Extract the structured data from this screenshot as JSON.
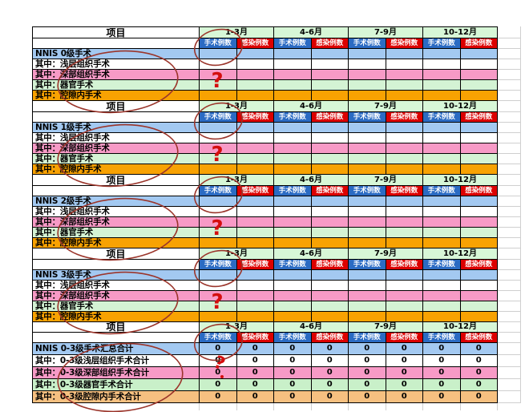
{
  "header": {
    "item_label": "项目",
    "months": [
      "1-3月",
      "4-6月",
      "7-9月",
      "10-12月"
    ],
    "sub_columns": [
      "手术例数",
      "感染例数"
    ]
  },
  "colors": {
    "month_header_bg": "#D7F7D7",
    "surgery_header_bg": "#2B6BC3",
    "infection_header_bg": "#DC0000",
    "title_row_bg": "#A3C9F1",
    "grid_border": "#000000",
    "margin_gridline": "#CFCFCF"
  },
  "sections": [
    {
      "title": {
        "label": "NNIS 0级手术",
        "color": "#A3C9F1",
        "values": [
          "",
          "",
          "",
          "",
          "",
          "",
          "",
          ""
        ]
      },
      "rows": [
        {
          "label": "其中：浅层组织手术",
          "color": "#FFFFFF",
          "values": [
            "",
            "",
            "",
            "",
            "",
            "",
            "",
            ""
          ]
        },
        {
          "label": "其中：深部组织手术",
          "color": "#F79AC6",
          "values": [
            "",
            "",
            "",
            "",
            "",
            "",
            "",
            ""
          ]
        },
        {
          "label": "其中：器官手术",
          "color": "#D4F3D4",
          "values": [
            "",
            "",
            "",
            "",
            "",
            "",
            "",
            ""
          ]
        },
        {
          "label": "其中：腔隙内手术",
          "color": "#F8A202",
          "values": [
            "",
            "",
            "",
            "",
            "",
            "",
            "",
            ""
          ]
        }
      ]
    },
    {
      "title": {
        "label": "NNIS 1级手术",
        "color": "#A3C9F1",
        "values": [
          "",
          "",
          "",
          "",
          "",
          "",
          "",
          ""
        ]
      },
      "rows": [
        {
          "label": "其中：浅层组织手术",
          "color": "#FFFFFF",
          "values": [
            "",
            "",
            "",
            "",
            "",
            "",
            "",
            ""
          ]
        },
        {
          "label": "其中：深部组织手术",
          "color": "#F79AC6",
          "values": [
            "",
            "",
            "",
            "",
            "",
            "",
            "",
            ""
          ]
        },
        {
          "label": "其中：器官手术",
          "color": "#D4F3D4",
          "values": [
            "",
            "",
            "",
            "",
            "",
            "",
            "",
            ""
          ]
        },
        {
          "label": "其中：腔隙内手术",
          "color": "#F8A202",
          "values": [
            "",
            "",
            "",
            "",
            "",
            "",
            "",
            ""
          ]
        }
      ]
    },
    {
      "title": {
        "label": "NNIS 2级手术",
        "color": "#A3C9F1",
        "values": [
          "",
          "",
          "",
          "",
          "",
          "",
          "",
          ""
        ]
      },
      "rows": [
        {
          "label": "其中：浅层组织手术",
          "color": "#FFFFFF",
          "values": [
            "",
            "",
            "",
            "",
            "",
            "",
            "",
            ""
          ]
        },
        {
          "label": "其中：深部组织手术",
          "color": "#F79AC6",
          "values": [
            "",
            "",
            "",
            "",
            "",
            "",
            "",
            ""
          ]
        },
        {
          "label": "其中：器官手术",
          "color": "#D4F3D4",
          "values": [
            "",
            "",
            "",
            "",
            "",
            "",
            "",
            ""
          ]
        },
        {
          "label": "其中：腔隙内手术",
          "color": "#F8A202",
          "values": [
            "",
            "",
            "",
            "",
            "",
            "",
            "",
            ""
          ]
        }
      ]
    },
    {
      "title": {
        "label": "NNIS 3级手术",
        "color": "#A3C9F1",
        "values": [
          "",
          "",
          "",
          "",
          "",
          "",
          "",
          ""
        ]
      },
      "rows": [
        {
          "label": "其中：浅层组织手术",
          "color": "#FFFFFF",
          "values": [
            "",
            "",
            "",
            "",
            "",
            "",
            "",
            ""
          ]
        },
        {
          "label": "其中：深部组织手术",
          "color": "#F79AC6",
          "values": [
            "",
            "",
            "",
            "",
            "",
            "",
            "",
            ""
          ]
        },
        {
          "label": "其中：器官手术",
          "color": "#D4F3D4",
          "values": [
            "",
            "",
            "",
            "",
            "",
            "",
            "",
            ""
          ]
        },
        {
          "label": "其中：腔隙内手术",
          "color": "#F8A202",
          "values": [
            "",
            "",
            "",
            "",
            "",
            "",
            "",
            ""
          ]
        }
      ]
    },
    {
      "title": {
        "label": "NNIS 0-3级手术汇总合计",
        "color": "#A3C9F1",
        "values": [
          "0",
          "0",
          "0",
          "0",
          "0",
          "0",
          "0",
          "0"
        ]
      },
      "rows": [
        {
          "label": "其中：0-3级浅层组织手术合计",
          "color": "#FFFFFF",
          "values": [
            "0",
            "0",
            "0",
            "0",
            "0",
            "0",
            "0",
            "0"
          ]
        },
        {
          "label": "其中：0-3级深部组织手术合计",
          "color": "#F79AC6",
          "values": [
            "0",
            "0",
            "0",
            "0",
            "0",
            "0",
            "0",
            "0"
          ]
        },
        {
          "label": "其中：0-3级器官手术合计",
          "color": "#C9F0C9",
          "values": [
            "0",
            "0",
            "0",
            "0",
            "0",
            "0",
            "0",
            "0"
          ]
        },
        {
          "label": "其中：0-3级腔隙内手术合计",
          "color": "#F6C080",
          "values": [
            "0",
            "0",
            "0",
            "0",
            "0",
            "0",
            "0",
            "0"
          ]
        }
      ]
    }
  ],
  "annotations": {
    "question_mark": "?",
    "circle_color": "#9B352B",
    "question_color": "#D40E0E"
  }
}
